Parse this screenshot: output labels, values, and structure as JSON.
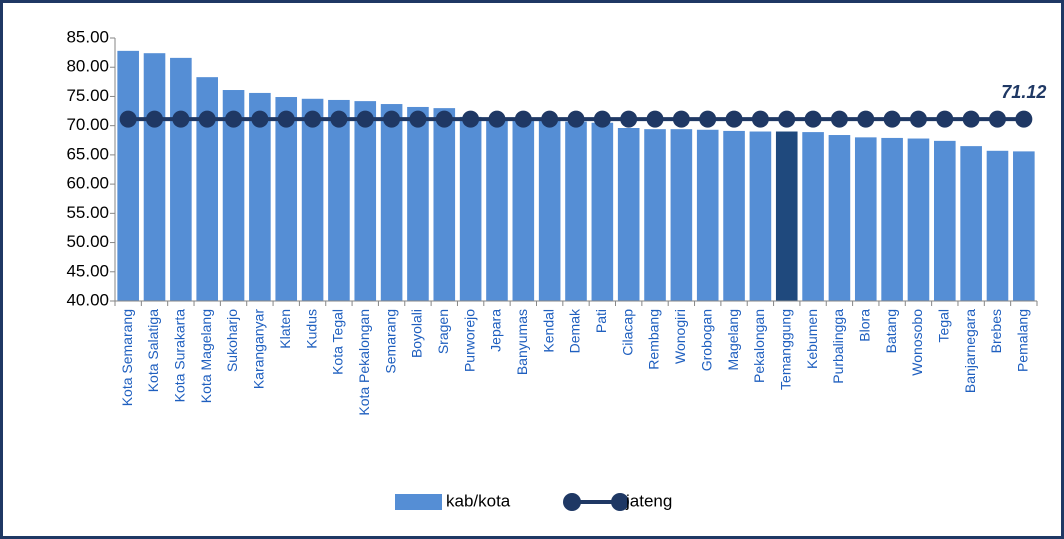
{
  "chart_data": {
    "type": "bar_line",
    "categories": [
      "Kota Semarang",
      "Kota Salatiga",
      "Kota Surakarta",
      "Kota Magelang",
      "Sukoharjo",
      "Karanganyar",
      "Klaten",
      "Kudus",
      "Kota Tegal",
      "Kota Pekalongan",
      "Semarang",
      "Boyolali",
      "Sragen",
      "Purworejo",
      "Jepara",
      "Banyumas",
      "Kendal",
      "Demak",
      "Pati",
      "Cilacap",
      "Rembang",
      "Wonogiri",
      "Grobogan",
      "Magelang",
      "Pekalongan",
      "Temanggung",
      "Kebumen",
      "Purbalingga",
      "Blora",
      "Batang",
      "Wonosobo",
      "Tegal",
      "Banjarnegara",
      "Brebes",
      "Pemalang"
    ],
    "series": [
      {
        "name": "kab/kota",
        "type": "bar",
        "color": "#558ed5",
        "colors": [
          "#558ed5",
          "#558ed5",
          "#558ed5",
          "#558ed5",
          "#558ed5",
          "#558ed5",
          "#558ed5",
          "#558ed5",
          "#558ed5",
          "#558ed5",
          "#558ed5",
          "#558ed5",
          "#558ed5",
          "#558ed5",
          "#558ed5",
          "#558ed5",
          "#558ed5",
          "#558ed5",
          "#558ed5",
          "#558ed5",
          "#558ed5",
          "#558ed5",
          "#558ed5",
          "#558ed5",
          "#558ed5",
          "#1f497d",
          "#558ed5",
          "#558ed5",
          "#558ed5",
          "#558ed5",
          "#558ed5",
          "#558ed5",
          "#558ed5",
          "#558ed5",
          "#558ed5"
        ],
        "values": [
          82.8,
          82.4,
          81.6,
          78.3,
          76.1,
          75.6,
          74.9,
          74.6,
          74.4,
          74.2,
          73.7,
          73.2,
          73.0,
          71.5,
          71.2,
          71.0,
          70.8,
          70.7,
          70.5,
          69.6,
          69.4,
          69.4,
          69.3,
          69.1,
          69.0,
          69.0,
          68.9,
          68.4,
          68.0,
          67.9,
          67.8,
          67.4,
          66.5,
          65.7,
          65.6
        ]
      },
      {
        "name": "jateng",
        "type": "line",
        "color": "#1f3864",
        "values": [
          71.12,
          71.12,
          71.12,
          71.12,
          71.12,
          71.12,
          71.12,
          71.12,
          71.12,
          71.12,
          71.12,
          71.12,
          71.12,
          71.12,
          71.12,
          71.12,
          71.12,
          71.12,
          71.12,
          71.12,
          71.12,
          71.12,
          71.12,
          71.12,
          71.12,
          71.12,
          71.12,
          71.12,
          71.12,
          71.12,
          71.12,
          71.12,
          71.12,
          71.12,
          71.12
        ]
      }
    ],
    "ylim": [
      40,
      85
    ],
    "yticks": [
      {
        "value": 40,
        "label": "40.00"
      },
      {
        "value": 45,
        "label": "45.00"
      },
      {
        "value": 50,
        "label": "50.00"
      },
      {
        "value": 55,
        "label": "55.00"
      },
      {
        "value": 60,
        "label": "60.00"
      },
      {
        "value": 65,
        "label": "65.00"
      },
      {
        "value": 70,
        "label": "70.00"
      },
      {
        "value": 75,
        "label": "75.00"
      },
      {
        "value": 80,
        "label": "80.00"
      },
      {
        "value": 85,
        "label": "85.00"
      }
    ],
    "legend": "bottom"
  }
}
